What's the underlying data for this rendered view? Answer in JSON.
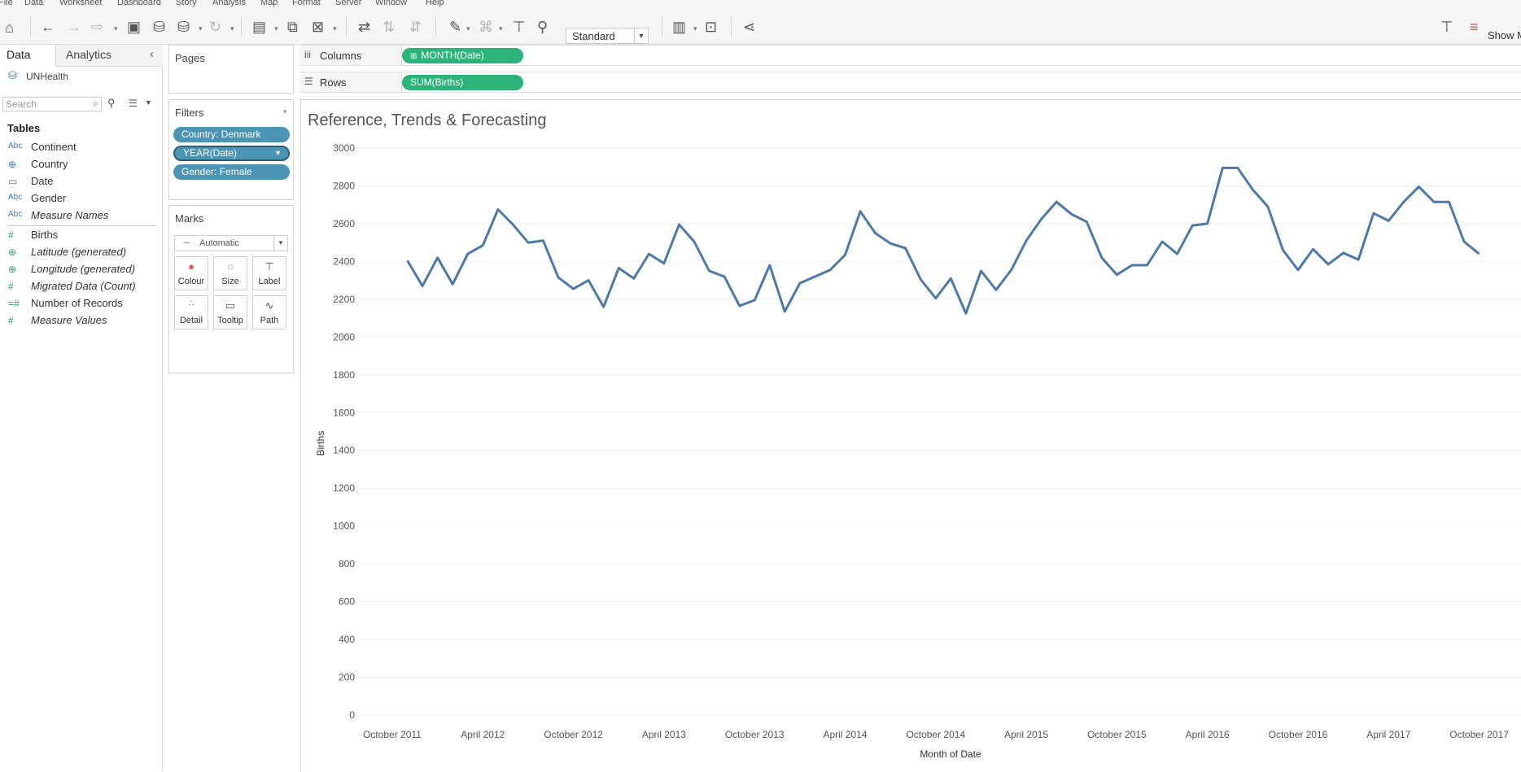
{
  "menu": [
    "File",
    "Data",
    "Worksheet",
    "Dashboard",
    "Story",
    "Analysis",
    "Map",
    "Format",
    "Server",
    "Window",
    "Help"
  ],
  "toolbar": {
    "fit_select": "Standard",
    "show_me_label": "Show M"
  },
  "left_panel": {
    "tabs": {
      "data": "Data",
      "analytics": "Analytics"
    },
    "datasource": "UNHealth",
    "search_placeholder": "Search",
    "tables_heading": "Tables",
    "dimensions": [
      {
        "icon": "Abc",
        "label": "Continent",
        "italic": false
      },
      {
        "icon": "globe",
        "label": "Country",
        "italic": false
      },
      {
        "icon": "calendar",
        "label": "Date",
        "italic": false
      },
      {
        "icon": "Abc",
        "label": "Gender",
        "italic": false
      },
      {
        "icon": "Abc",
        "label": "Measure Names",
        "italic": true
      }
    ],
    "measures": [
      {
        "icon": "#",
        "label": "Births",
        "italic": false
      },
      {
        "icon": "globe",
        "label": "Latitude (generated)",
        "italic": true
      },
      {
        "icon": "globe",
        "label": "Longitude (generated)",
        "italic": true
      },
      {
        "icon": "#",
        "label": "Migrated Data (Count)",
        "italic": true
      },
      {
        "icon": "=#",
        "label": "Number of Records",
        "italic": false
      },
      {
        "icon": "#",
        "label": "Measure Values",
        "italic": true
      }
    ]
  },
  "pages": {
    "title": "Pages"
  },
  "filters": {
    "title": "Filters",
    "items": [
      "Country: Denmark",
      "YEAR(Date)",
      "Gender: Female"
    ]
  },
  "marks": {
    "title": "Marks",
    "type": "Automatic",
    "buttons": [
      "Colour",
      "Size",
      "Label",
      "Detail",
      "Tooltip",
      "Path"
    ]
  },
  "shelves": {
    "columns": {
      "label": "Columns",
      "pill": "MONTH(Date)"
    },
    "rows": {
      "label": "Rows",
      "pill": "SUM(Births)"
    }
  },
  "chart_data": {
    "type": "line",
    "title": "Reference, Trends & Forecasting",
    "xlabel": "Month of Date",
    "ylabel": "Births",
    "ylim": [
      0,
      3000
    ],
    "yticks": [
      0,
      200,
      400,
      600,
      800,
      1000,
      1200,
      1400,
      1600,
      1800,
      2000,
      2200,
      2400,
      2600,
      2800,
      3000
    ],
    "xticks": [
      "October 2011",
      "April 2012",
      "October 2012",
      "April 2013",
      "October 2013",
      "April 2014",
      "October 2014",
      "April 2015",
      "October 2015",
      "April 2016",
      "October 2016",
      "April 2017",
      "October 2017"
    ],
    "x_start": "2011-11",
    "x_end": "2017-12",
    "series": [
      {
        "values": [
          2405,
          2270,
          2420,
          2280,
          2440,
          2485,
          2675,
          2595,
          2500,
          2510,
          2315,
          2255,
          2300,
          2160,
          2365,
          2310,
          2440,
          2390,
          2595,
          2505,
          2350,
          2320,
          2165,
          2195,
          2380,
          2135,
          2285,
          2320,
          2355,
          2435,
          2665,
          2550,
          2495,
          2470,
          2305,
          2205,
          2310,
          2125,
          2350,
          2250,
          2355,
          2510,
          2625,
          2715,
          2650,
          2610,
          2420,
          2330,
          2380,
          2380,
          2505,
          2440,
          2590,
          2600,
          2895,
          2895,
          2780,
          2690,
          2460,
          2355,
          2465,
          2385,
          2445,
          2410,
          2655,
          2615,
          2715,
          2795,
          2715,
          2715,
          2505,
          2440
        ]
      }
    ],
    "line_color": "#4e79a7"
  }
}
